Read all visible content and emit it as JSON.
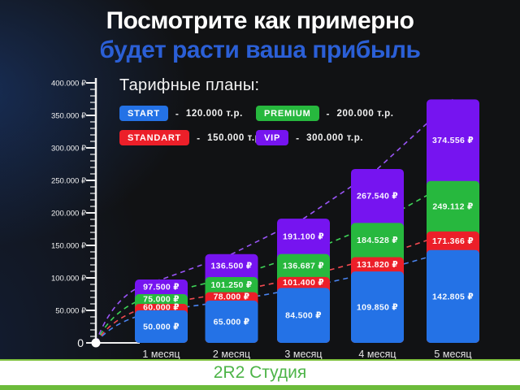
{
  "title": {
    "line1": "Посмотрите как примерно",
    "line2": "будет расти ваша прибыль"
  },
  "legend": {
    "heading": "Тарифные планы:",
    "separator": "-",
    "items": [
      {
        "name": "START",
        "price": "120.000 т.р.",
        "color": "#2472e6"
      },
      {
        "name": "PREMIUM",
        "price": "200.000 т.р.",
        "color": "#27b83e"
      },
      {
        "name": "STANDART",
        "price": "150.000 т.р.",
        "color": "#ec1f29"
      },
      {
        "name": "VIP",
        "price": "300.000 т.р.",
        "color": "#7614f0"
      }
    ]
  },
  "chart_data": {
    "type": "bar",
    "subtype": "overlaid-sorted-bars-with-dashed-trend-lines",
    "categories": [
      "1 месяц",
      "2 месяц",
      "3 месяц",
      "4 месяц",
      "5 месяц"
    ],
    "series": [
      {
        "name": "START",
        "color": "#2472e6",
        "line_color": "#4a84f0",
        "values": [
          50000,
          65000,
          84500,
          109850,
          142805
        ],
        "labels": [
          "50.000 ₽",
          "65.000 ₽",
          "84.500 ₽",
          "109.850 ₽",
          "142.805 ₽"
        ]
      },
      {
        "name": "STANDART",
        "color": "#ec1f29",
        "line_color": "#f24a50",
        "values": [
          60000,
          78000,
          101400,
          131820,
          171366
        ],
        "labels": [
          "60.000 ₽",
          "78.000 ₽",
          "101.400 ₽",
          "131.820 ₽",
          "171.366 ₽"
        ]
      },
      {
        "name": "PREMIUM",
        "color": "#27b83e",
        "line_color": "#3ed457",
        "values": [
          75000,
          101250,
          136687,
          184528,
          249112
        ],
        "labels": [
          "75.000 ₽",
          "101.250 ₽",
          "136.687 ₽",
          "184.528 ₽",
          "249.112 ₽"
        ]
      },
      {
        "name": "VIP",
        "color": "#7614f0",
        "line_color": "#9a55f7",
        "values": [
          97500,
          136500,
          191100,
          267540,
          374556
        ],
        "labels": [
          "97.500 ₽",
          "136.500 ₽",
          "191.100 ₽",
          "267.540 ₽",
          "374.556 ₽"
        ]
      }
    ],
    "ylim": [
      0,
      400000
    ],
    "ytick_labels": [
      "0",
      "50.000 ₽",
      "100.000 ₽",
      "150.000 ₽",
      "200.000 ₽",
      "250.000 ₽",
      "300.000 ₽",
      "350.000 ₽",
      "400.000 ₽"
    ],
    "grid": false,
    "legend_position": "top-left-inside"
  },
  "colors": {
    "background": "#111214",
    "title_accent": "#2b5fd6",
    "axis": "#efefef",
    "footer_text": "#4db448",
    "footer_border": "#7fc13e"
  },
  "footer": {
    "text": "2R2 Студия"
  }
}
